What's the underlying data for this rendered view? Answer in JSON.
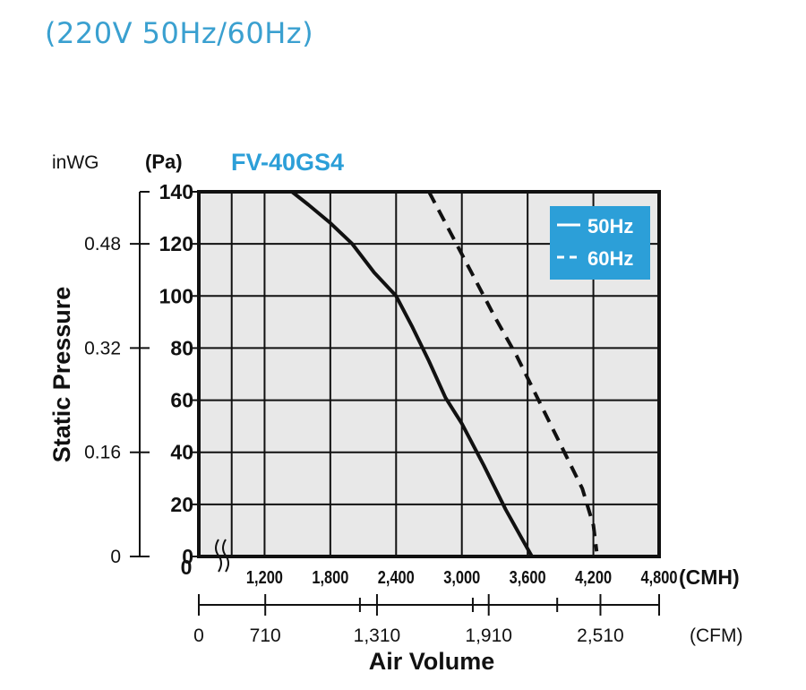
{
  "header": {
    "title": "(220V 50Hz/60Hz)"
  },
  "chart_data": {
    "type": "line",
    "title": "FV-40GS4",
    "ylabel": "Static Pressure",
    "xlabel": "Air Volume",
    "y_unit_primary": "(Pa)",
    "y_unit_secondary": "inWG",
    "x_unit_primary": "(CMH)",
    "x_unit_secondary": "(CFM)",
    "ylim": [
      0,
      140
    ],
    "xlim": [
      600,
      4800
    ],
    "y_ticks_pa": [
      "0",
      "20",
      "40",
      "60",
      "80",
      "100",
      "120",
      "140"
    ],
    "y_ticks_inwg": [
      "0",
      "0.16",
      "0.32",
      "0.48"
    ],
    "x_ticks_cmh": [
      "1,200",
      "1,800",
      "2,400",
      "3,000",
      "3,600",
      "4,200",
      "4,800"
    ],
    "x_ticks_cfm": [
      "0",
      "710",
      "1,310",
      "1,910",
      "2,510"
    ],
    "grid": true,
    "legend_position": "top-right",
    "legend_color": "#2c9fd8",
    "series": [
      {
        "name": "50Hz",
        "style": "solid",
        "x": [
          1450,
          1600,
          1800,
          2000,
          2200,
          2400,
          2550,
          2700,
          2850,
          3000,
          3200,
          3400,
          3560,
          3640
        ],
        "y": [
          140,
          135,
          128,
          120,
          109,
          100,
          88,
          75,
          61,
          51,
          35,
          18,
          6,
          0
        ]
      },
      {
        "name": "60Hz",
        "style": "dashed",
        "x": [
          2700,
          2900,
          3100,
          3300,
          3500,
          3700,
          3900,
          4100,
          4200,
          4230
        ],
        "y": [
          140,
          124,
          108,
          92,
          77,
          60,
          43,
          26,
          12,
          2
        ]
      }
    ]
  }
}
